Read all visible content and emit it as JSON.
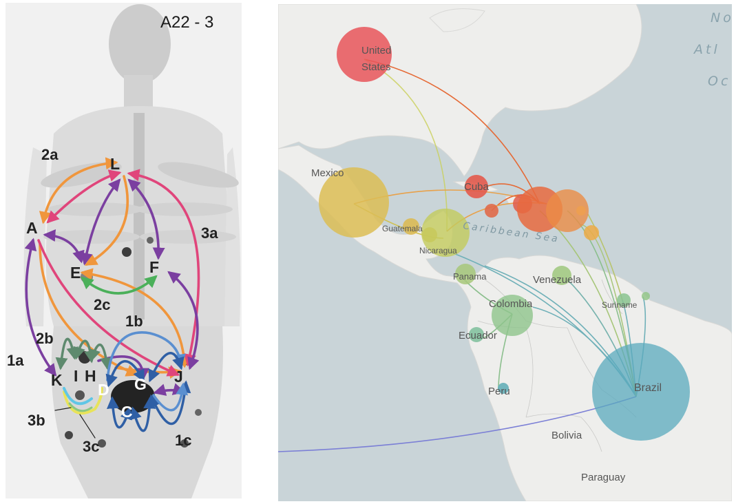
{
  "left_panel": {
    "scan_id": "A22 - 3",
    "nodes": [
      "A",
      "C",
      "D",
      "E",
      "F",
      "G",
      "H",
      "I",
      "J",
      "K",
      "L"
    ],
    "route_labels": [
      "2a",
      "3a",
      "2c",
      "1b",
      "2b",
      "1a",
      "3b",
      "3c",
      "1c"
    ]
  },
  "right_panel": {
    "countries": {
      "united_states": "United States",
      "mexico": "Mexico",
      "cuba": "Cuba",
      "guatemala": "Guatemala",
      "nicaragua": "Nicaragua",
      "panama": "Panama",
      "venezuela": "Venezuela",
      "colombia": "Colombia",
      "ecuador": "Ecuador",
      "suriname": "Suriname",
      "peru": "Peru",
      "brazil": "Brazil",
      "bolivia": "Bolivia",
      "paraguay": "Paraguay"
    },
    "water": {
      "ocean_1": "No",
      "ocean_2": "Atl",
      "ocean_3": "Oc",
      "sea": "Caribbean Sea"
    }
  }
}
